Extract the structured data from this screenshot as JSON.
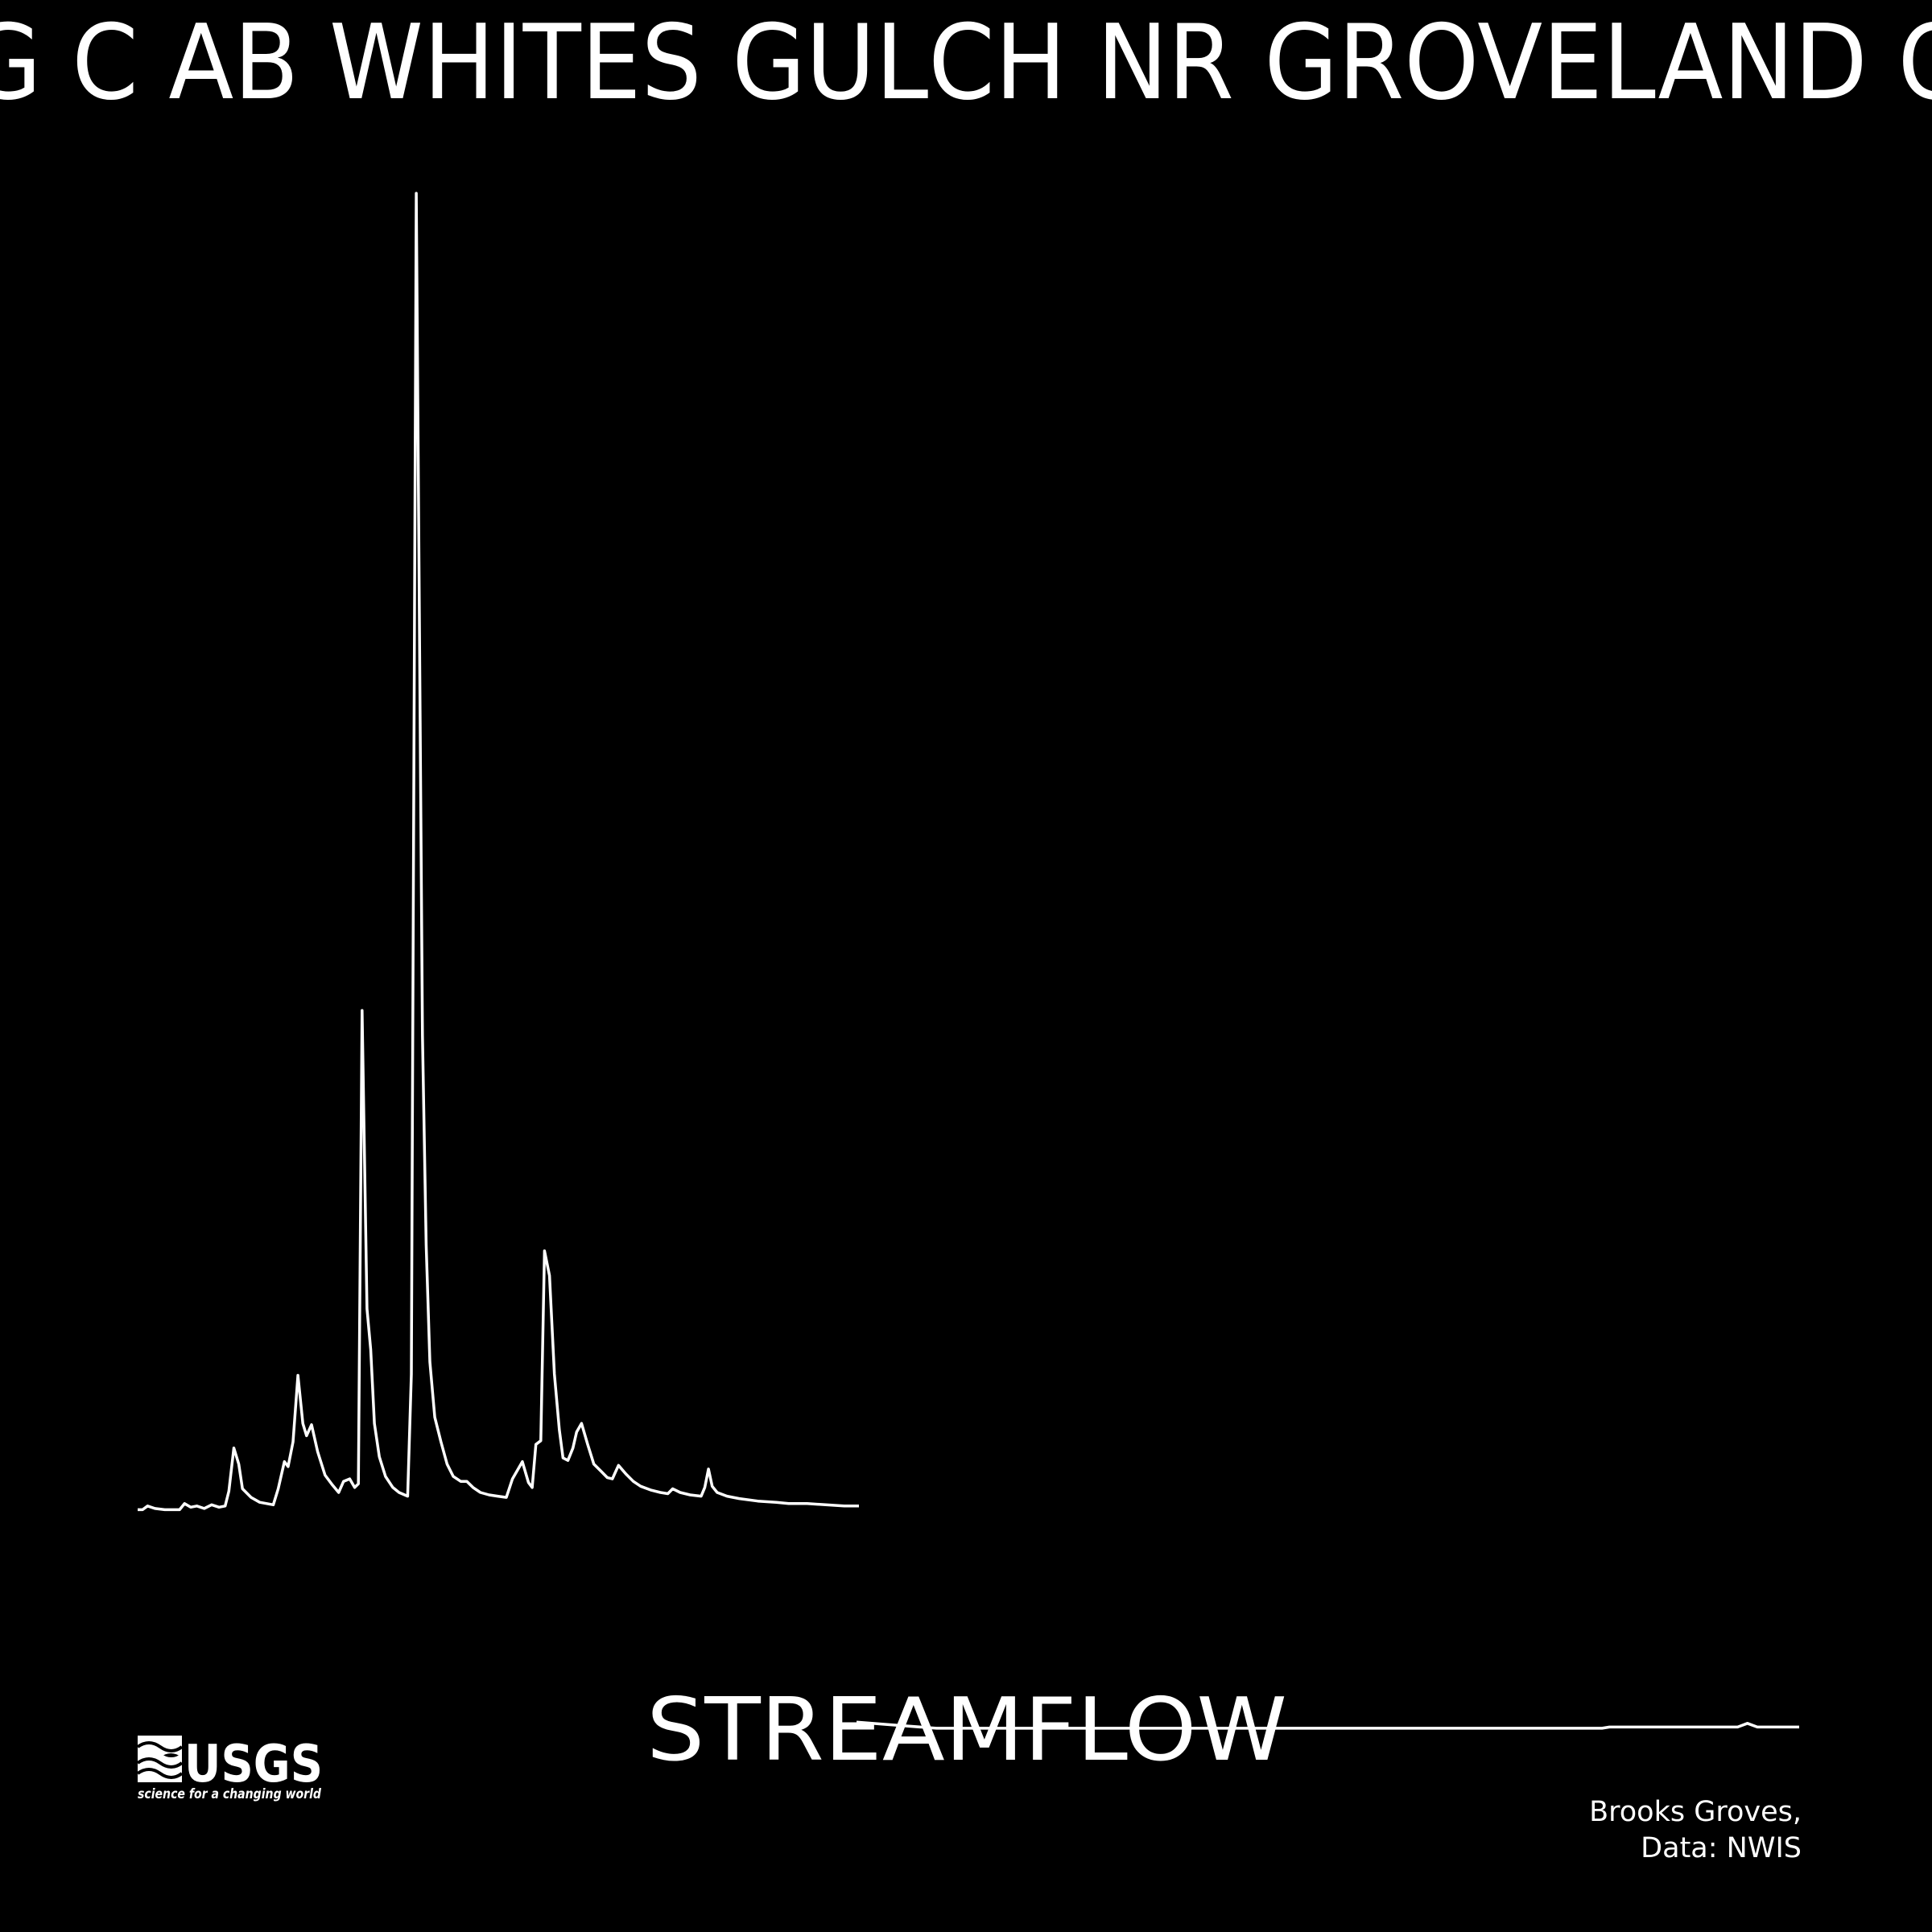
{
  "chart_data": [
    {
      "type": "line",
      "title": "G C AB WHITES GULCH NR GROVELAND C",
      "subtitle": "STREAMFLOW",
      "color": "#ffffff",
      "x": [
        0,
        4,
        8,
        14,
        22,
        34,
        38,
        43,
        48,
        54,
        60,
        66,
        71,
        74,
        78,
        82,
        85,
        92,
        99,
        110,
        114,
        119,
        122,
        126,
        130,
        134,
        137,
        141,
        146,
        152,
        158,
        163,
        167,
        172,
        176,
        179,
        182,
        186,
        189,
        192,
        196,
        201,
        207,
        212,
        219,
        222,
        226,
        231,
        234,
        237,
        241,
        246,
        251,
        256,
        262,
        267,
        272,
        278,
        285,
        292,
        299,
        304,
        312,
        317,
        320,
        323,
        327,
        330,
        334,
        338,
        342,
        345,
        349,
        353,
        356,
        360,
        365,
        370,
        376,
        381,
        385,
        390,
        396,
        402,
        408,
        416,
        424,
        430,
        434,
        440,
        448,
        457,
        460,
        463,
        466,
        470,
        478,
        488,
        503,
        518,
        528,
        543,
        558,
        573,
        585
      ],
      "values": [
        3,
        3,
        6,
        4,
        3,
        3,
        8,
        5,
        6,
        4,
        7,
        5,
        6,
        18,
        53,
        40,
        20,
        13,
        9,
        7,
        20,
        42,
        38,
        58,
        112,
        73,
        63,
        72,
        50,
        31,
        23,
        17,
        26,
        28,
        21,
        24,
        408,
        166,
        133,
        73,
        46,
        30,
        21,
        17,
        14,
        113,
        1071,
        388,
        218,
        123,
        78,
        58,
        40,
        30,
        26,
        26,
        21,
        17,
        15,
        14,
        13,
        28,
        42,
        25,
        21,
        56,
        59,
        213,
        193,
        113,
        68,
        45,
        43,
        53,
        66,
        73,
        56,
        40,
        34,
        29,
        28,
        39,
        32,
        26,
        22,
        19,
        17,
        16,
        20,
        17,
        15,
        14,
        21,
        36,
        22,
        17,
        14,
        12,
        10,
        9,
        8,
        8,
        7,
        6,
        6
      ],
      "xlim": [
        0,
        585
      ],
      "ylim": [
        0,
        1075
      ]
    },
    {
      "type": "line",
      "color": "#ffffff",
      "x": [
        0,
        25,
        65,
        605,
        611,
        715,
        723,
        731,
        765
      ],
      "values": [
        7,
        5,
        2,
        2,
        3,
        3,
        6,
        3,
        3
      ],
      "xlim": [
        0,
        765
      ],
      "ylim": [
        0,
        1075
      ]
    }
  ],
  "logo": {
    "text": "USGS",
    "tagline": "science for a changing world"
  },
  "credits": [
    "Brooks Groves,",
    "Data: NWIS"
  ]
}
